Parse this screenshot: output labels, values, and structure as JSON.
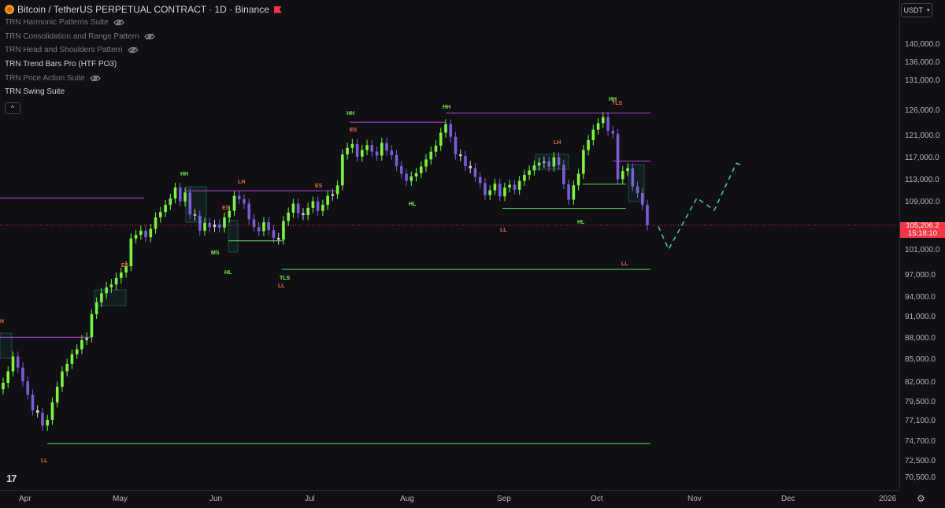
{
  "header": {
    "symbol_title": "Bitcoin / TetherUS PERPETUAL CONTRACT · 1D · Binance",
    "currency_button": "USDT"
  },
  "indicators": [
    {
      "name": "TRN Harmonic Patterns Suite",
      "hidden": true
    },
    {
      "name": "TRN Consolidation and Range Pattern",
      "hidden": true
    },
    {
      "name": "TRN Head and Shoulders Pattern",
      "hidden": true
    },
    {
      "name": "TRN Trend Bars Pro (HTF PO3)",
      "hidden": false
    },
    {
      "name": "TRN Price Action Suite",
      "hidden": true
    },
    {
      "name": "TRN Swing Suite",
      "hidden": false
    }
  ],
  "collapse_button": "^",
  "price_axis": {
    "labels": [
      "140,000.0",
      "136,000.0",
      "131,000.0",
      "126,000.0",
      "121,000.0",
      "117,000.0",
      "113,000.0",
      "109,000.0",
      "101,000.0",
      "97,000.0",
      "94,000.0",
      "91,000.0",
      "88,000.0",
      "85,000.0",
      "82,000.0",
      "79,500.0",
      "77,100.0",
      "74,700.0",
      "72,500.0",
      "70,500.0"
    ],
    "current_price": "105,206.2",
    "countdown": "15:18:10"
  },
  "time_axis": {
    "labels": [
      "Apr",
      "May",
      "Jun",
      "Jul",
      "Aug",
      "Sep",
      "Oct",
      "Nov",
      "Dec",
      "2026"
    ]
  },
  "swing_labels": [
    {
      "text": "H",
      "kind": "high"
    },
    {
      "text": "LL",
      "kind": "low"
    },
    {
      "text": "ES",
      "kind": "high"
    },
    {
      "text": "HH",
      "kind": "hh"
    },
    {
      "text": "LH",
      "kind": "high"
    },
    {
      "text": "ES",
      "kind": "high"
    },
    {
      "text": "ES",
      "kind": "high"
    },
    {
      "text": "MS",
      "kind": "hh"
    },
    {
      "text": "HL",
      "kind": "hh"
    },
    {
      "text": "TLS",
      "kind": "hh"
    },
    {
      "text": "LL",
      "kind": "low"
    },
    {
      "text": "HH",
      "kind": "hh"
    },
    {
      "text": "ES",
      "kind": "high"
    },
    {
      "text": "HL",
      "kind": "hh"
    },
    {
      "text": "HH",
      "kind": "hh"
    },
    {
      "text": "LH",
      "kind": "high"
    },
    {
      "text": "LL",
      "kind": "low"
    },
    {
      "text": "HL",
      "kind": "hh"
    },
    {
      "text": "HH",
      "kind": "hh"
    },
    {
      "text": "TLS",
      "kind": "high"
    },
    {
      "text": "LL",
      "kind": "low"
    }
  ],
  "colors": {
    "background": "#0f0f14",
    "bull_candle": "#7cf542",
    "bear_candle": "#7b5cd6",
    "neutral_candle": "#d1d4dc",
    "resistance_line": "#b347d6",
    "support_line": "#67d96b",
    "projection": "#4ec9b0",
    "price_line": "#f23645"
  },
  "chart_data": {
    "type": "candlestick",
    "symbol": "BTCUSDT.P",
    "timeframe": "1D",
    "y_axis_range": [
      70000,
      142000
    ],
    "current_price": 105206.2,
    "approx_closes": [
      82000,
      83500,
      85500,
      84000,
      82200,
      80500,
      78500,
      78200,
      76600,
      77300,
      79500,
      81500,
      83500,
      84500,
      85800,
      86500,
      87800,
      88200,
      91500,
      93300,
      94600,
      95400,
      95800,
      96700,
      97500,
      98500,
      103000,
      103600,
      104300,
      103200,
      104600,
      106500,
      107400,
      108600,
      109700,
      111700,
      109200,
      110800,
      107000,
      106800,
      104300,
      105600,
      104900,
      105300,
      104800,
      106500,
      107600,
      110200,
      109600,
      108800,
      106200,
      104900,
      104200,
      105700,
      104400,
      103100,
      102800,
      105900,
      107300,
      108800,
      107200,
      106900,
      108100,
      109200,
      107600,
      108600,
      110200,
      110500,
      112100,
      117700,
      118900,
      119600,
      117300,
      118500,
      119400,
      118200,
      117500,
      119800,
      118400,
      117600,
      115600,
      114200,
      112900,
      113700,
      114300,
      115500,
      116800,
      118200,
      119300,
      121700,
      123400,
      120900,
      117700,
      117400,
      115600,
      115200,
      113600,
      112500,
      110300,
      111200,
      112400,
      110100,
      111700,
      112200,
      111300,
      112900,
      114000,
      114800,
      115700,
      116200,
      116400,
      115500,
      117200,
      115800,
      112300,
      109500,
      112100,
      114200,
      118500,
      120300,
      122300,
      123600,
      124800,
      122100,
      121500,
      113200,
      114700,
      115200,
      111900,
      110700,
      108600,
      105206
    ],
    "resistance_levels": [
      88200,
      111100,
      109800,
      123800,
      125600,
      116500
    ],
    "support_levels": [
      74500,
      98000,
      102600,
      108000,
      112300
    ],
    "projection_path": [
      105000,
      101200,
      109800,
      107700,
      116100,
      115700
    ]
  }
}
